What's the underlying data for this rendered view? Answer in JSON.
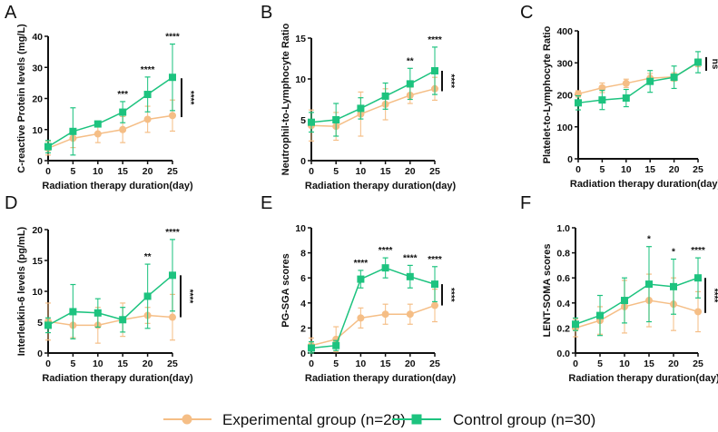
{
  "colors": {
    "experimental": "#F5BE86",
    "control": "#1DC37F",
    "axis": "#111111"
  },
  "legend": {
    "experimental": "Experimental group (n=28)",
    "control": "Control group (n=30)",
    "experimental_marker": "circle",
    "control_marker": "square",
    "placement": "bottom-center"
  },
  "chart_data": [
    {
      "panel": "A",
      "type": "line",
      "xlabel": "Radiation therapy duration(day)",
      "ylabel": "C-reactive Protein levels (mg/L)",
      "x": [
        0,
        5,
        10,
        15,
        20,
        25
      ],
      "xticks": [
        "0",
        "5",
        "10",
        "15",
        "20",
        "25"
      ],
      "ylim": [
        0,
        40
      ],
      "yticks": [
        "0",
        "10",
        "20",
        "30",
        "40"
      ],
      "series": [
        {
          "name": "Experimental group (n=28)",
          "values": [
            4.0,
            7.2,
            8.6,
            10.0,
            13.3,
            14.5
          ],
          "error": [
            2.2,
            3.0,
            2.8,
            4.2,
            4.2,
            5.0
          ]
        },
        {
          "name": "Control group (n=30)",
          "values": [
            4.5,
            9.4,
            11.8,
            15.6,
            21.3,
            26.8
          ],
          "error": [
            2.0,
            7.6,
            0.5,
            3.4,
            5.6,
            10.7
          ]
        }
      ],
      "significance": [
        {
          "x": 15,
          "label": "***"
        },
        {
          "x": 20,
          "label": "****"
        },
        {
          "x": 25,
          "label": "****"
        }
      ],
      "overall": {
        "label": "****",
        "range": [
          14,
          26.5
        ]
      }
    },
    {
      "panel": "B",
      "type": "line",
      "xlabel": "Radiation therapy duration(day)",
      "ylabel": "Neutrophil-to-Lymphocyte Ratio",
      "x": [
        0,
        5,
        10,
        15,
        20,
        25
      ],
      "xticks": [
        "0",
        "5",
        "10",
        "15",
        "20",
        "25"
      ],
      "ylim": [
        0,
        15
      ],
      "yticks": [
        "0",
        "5",
        "10",
        "15"
      ],
      "series": [
        {
          "name": "Experimental group (n=28)",
          "values": [
            4.3,
            4.2,
            5.7,
            6.9,
            8.0,
            8.8
          ],
          "error": [
            1.9,
            1.7,
            2.7,
            1.9,
            1.0,
            1.4
          ]
        },
        {
          "name": "Control group (n=30)",
          "values": [
            4.7,
            5.0,
            6.4,
            7.9,
            9.4,
            11.0
          ],
          "error": [
            1.2,
            2.0,
            1.3,
            1.6,
            1.9,
            2.9
          ]
        }
      ],
      "significance": [
        {
          "x": 20,
          "label": "**"
        },
        {
          "x": 25,
          "label": "****"
        }
      ],
      "overall": {
        "label": "****",
        "range": [
          8.5,
          11
        ]
      }
    },
    {
      "panel": "C",
      "type": "line",
      "xlabel": "Radiation therapy duration(day)",
      "ylabel": "Platelet-to-Lymphocyte Ratio",
      "x": [
        0,
        5,
        10,
        15,
        20,
        25
      ],
      "xticks": [
        "0",
        "5",
        "10",
        "15",
        "20",
        "25"
      ],
      "ylim": [
        0,
        400
      ],
      "yticks": [
        "0",
        "100",
        "200",
        "300",
        "400"
      ],
      "series": [
        {
          "name": "Experimental group (n=28)",
          "values": [
            203,
            222,
            236,
            252,
            256,
            300
          ],
          "error": [
            10,
            15,
            13,
            15,
            13,
            12
          ]
        },
        {
          "name": "Control group (n=30)",
          "values": [
            175,
            184,
            190,
            242,
            255,
            302
          ],
          "error": [
            22,
            30,
            27,
            34,
            35,
            33
          ]
        }
      ],
      "significance": [],
      "overall": {
        "label": "ns",
        "range": [
          275,
          318
        ]
      }
    },
    {
      "panel": "D",
      "type": "line",
      "xlabel": "Radiation therapy duration(day)",
      "ylabel": "Interleukin-6 levels (pg/mL)",
      "x": [
        0,
        5,
        10,
        15,
        20,
        25
      ],
      "xticks": [
        "0",
        "5",
        "10",
        "15",
        "20",
        "25"
      ],
      "ylim": [
        0,
        20
      ],
      "yticks": [
        "0",
        "5",
        "10",
        "15",
        "20"
      ],
      "series": [
        {
          "name": "Experimental group (n=28)",
          "values": [
            5.1,
            4.5,
            4.5,
            5.4,
            6.1,
            5.8
          ],
          "error": [
            3.0,
            2.0,
            2.9,
            2.7,
            1.3,
            3.7
          ]
        },
        {
          "name": "Control group (n=30)",
          "values": [
            4.5,
            6.7,
            6.5,
            5.4,
            9.2,
            12.6
          ],
          "error": [
            1.2,
            4.4,
            2.3,
            2.0,
            5.2,
            5.8
          ]
        }
      ],
      "significance": [
        {
          "x": 20,
          "label": "**"
        },
        {
          "x": 25,
          "label": "****"
        }
      ],
      "overall": {
        "label": "****",
        "range": [
          5.8,
          12.6
        ]
      }
    },
    {
      "panel": "E",
      "type": "line",
      "xlabel": "Radiation therapy duration(day)",
      "ylabel": "PG-SGA scores",
      "x": [
        0,
        5,
        10,
        15,
        20,
        25
      ],
      "xticks": [
        "0",
        "5",
        "10",
        "15",
        "20",
        "25"
      ],
      "ylim": [
        0,
        10
      ],
      "yticks": [
        "0",
        "2",
        "4",
        "6",
        "8",
        "10"
      ],
      "series": [
        {
          "name": "Experimental group (n=28)",
          "values": [
            0.6,
            1.1,
            2.8,
            3.1,
            3.1,
            3.8
          ],
          "error": [
            0.6,
            1.0,
            0.8,
            0.8,
            0.8,
            1.3
          ]
        },
        {
          "name": "Control group (n=30)",
          "values": [
            0.4,
            0.6,
            5.9,
            6.8,
            6.1,
            5.5
          ],
          "error": [
            0.5,
            0.4,
            0.7,
            0.8,
            0.9,
            1.4
          ]
        }
      ],
      "significance": [
        {
          "x": 10,
          "label": "****"
        },
        {
          "x": 15,
          "label": "****"
        },
        {
          "x": 20,
          "label": "****"
        },
        {
          "x": 25,
          "label": "****"
        }
      ],
      "overall": {
        "label": "****",
        "range": [
          3.8,
          5.5
        ]
      }
    },
    {
      "panel": "F",
      "type": "line",
      "xlabel": "Radiation therapy duration(day)",
      "ylabel": "LENT-SOMA scores",
      "x": [
        0,
        5,
        10,
        15,
        20,
        25
      ],
      "xticks": [
        "0",
        "5",
        "10",
        "15",
        "20",
        "25"
      ],
      "ylim": [
        0,
        1
      ],
      "yticks": [
        "0.0",
        "0.2",
        "0.4",
        "0.6",
        "0.8",
        "1.0"
      ],
      "series": [
        {
          "name": "Experimental group (n=28)",
          "values": [
            0.2,
            0.26,
            0.37,
            0.42,
            0.39,
            0.33
          ],
          "error": [
            0.07,
            0.11,
            0.21,
            0.21,
            0.21,
            0.16
          ]
        },
        {
          "name": "Control group (n=30)",
          "values": [
            0.23,
            0.3,
            0.42,
            0.55,
            0.53,
            0.6
          ],
          "error": [
            0.05,
            0.16,
            0.18,
            0.3,
            0.22,
            0.16
          ]
        }
      ],
      "significance": [
        {
          "x": 15,
          "label": "*"
        },
        {
          "x": 20,
          "label": "*"
        },
        {
          "x": 25,
          "label": "****"
        }
      ],
      "overall": {
        "label": "****",
        "range": [
          0.32,
          0.6
        ]
      }
    }
  ]
}
